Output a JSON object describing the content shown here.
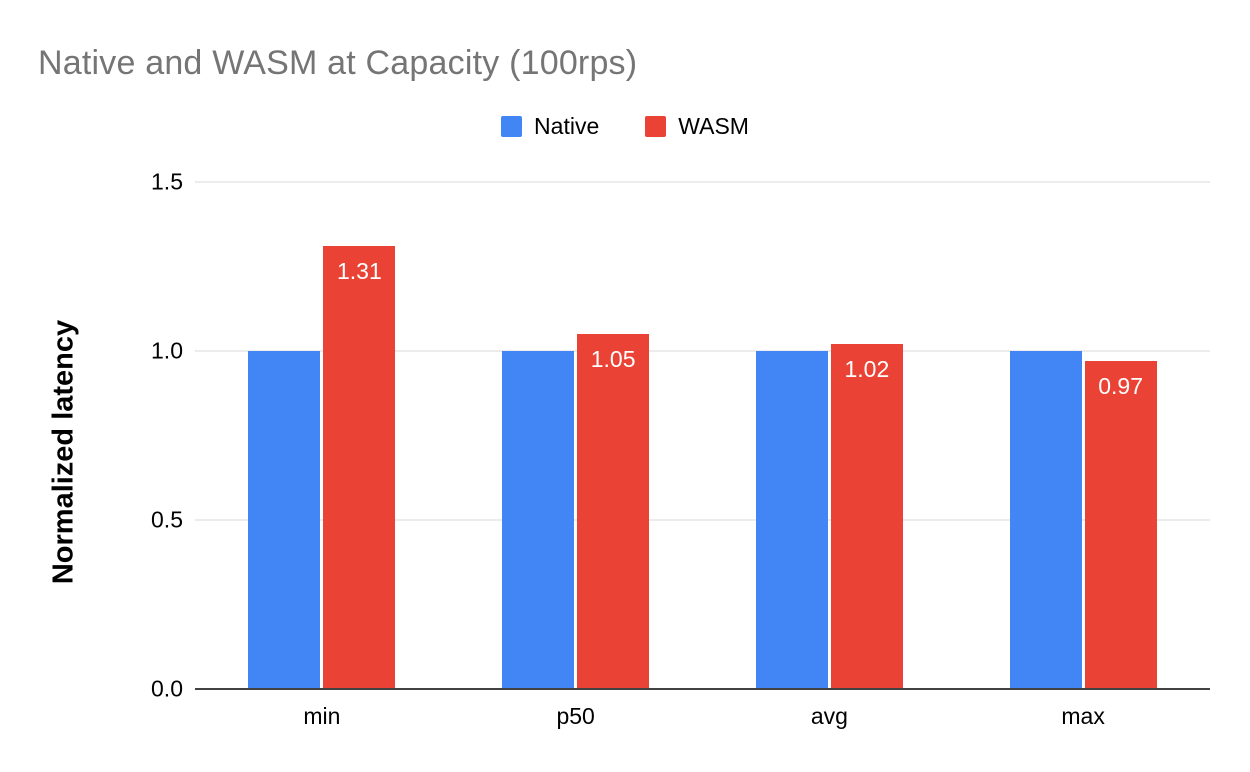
{
  "chart_data": {
    "type": "bar",
    "title": "Native and WASM at Capacity (100rps)",
    "xlabel": "",
    "ylabel": "Normalized latency",
    "categories": [
      "min",
      "p50",
      "avg",
      "max"
    ],
    "series": [
      {
        "name": "Native",
        "color": "#4285F4",
        "values": [
          1.0,
          1.0,
          1.0,
          1.0
        ],
        "data_labels": null
      },
      {
        "name": "WASM",
        "color": "#EA4335",
        "values": [
          1.31,
          1.05,
          1.02,
          0.97
        ],
        "data_labels": [
          "1.31",
          "1.05",
          "1.02",
          "0.97"
        ]
      }
    ],
    "ylim": [
      0,
      1.5
    ],
    "yticks": [
      0,
      0.5,
      1.0,
      1.5
    ],
    "ytick_labels": [
      "0.0",
      "0.5",
      "1.0",
      "1.5"
    ],
    "grid": true,
    "legend_position": "top"
  },
  "colors": {
    "background": "#ffffff",
    "title_text": "#757575",
    "gridline": "#dadada",
    "axis_line": "#424242",
    "label_text": "#000000",
    "bar_label_text": "#ffffff"
  }
}
